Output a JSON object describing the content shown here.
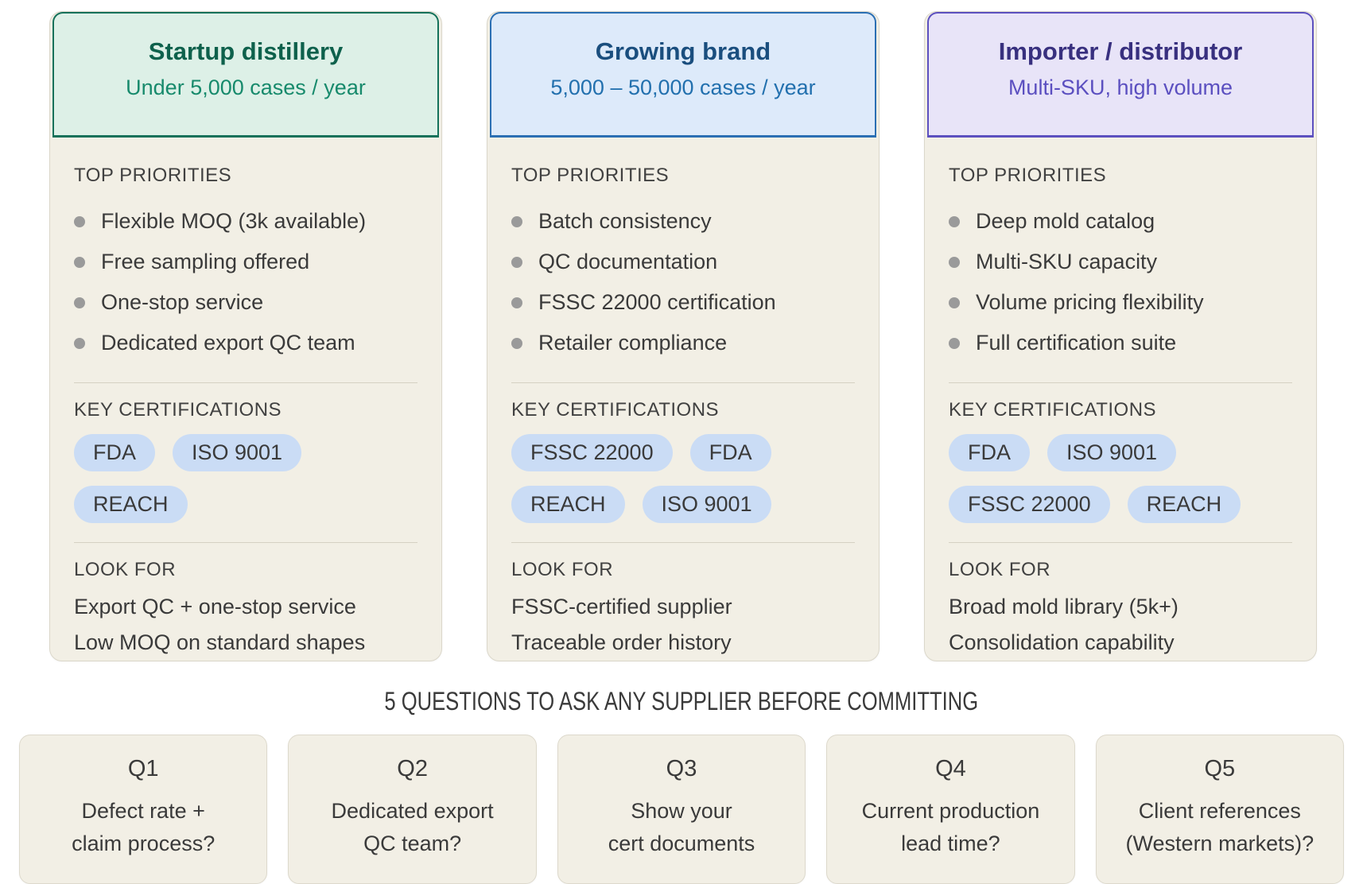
{
  "labels": {
    "priorities": "TOP PRIORITIES",
    "certifications": "KEY CERTIFICATIONS",
    "look_for": "LOOK FOR"
  },
  "colors": {
    "pill_bg": "#cadcf5",
    "card_bg": "#f2efe5",
    "card_border": "#dbd7ca",
    "text": "#3a3a3a",
    "bullet": "#9a9a9a"
  },
  "personas": [
    {
      "title": "Startup distillery",
      "subtitle": "Under 5,000 cases / year",
      "theme": {
        "header_bg": "#ddf0e7",
        "border": "#14715a",
        "title": "#0e614c",
        "subtitle": "#178a6c"
      },
      "priorities": [
        "Flexible MOQ (3k available)",
        "Free sampling offered",
        "One-stop service",
        "Dedicated export QC team"
      ],
      "certifications": [
        "FDA",
        "ISO 9001",
        "REACH"
      ],
      "look_for": [
        "Export QC + one-stop service",
        "Low MOQ on standard shapes"
      ]
    },
    {
      "title": "Growing brand",
      "subtitle": "5,000 – 50,000 cases / year",
      "theme": {
        "header_bg": "#ddeafa",
        "border": "#2b6fb3",
        "title": "#1a4e7e",
        "subtitle": "#2270ae"
      },
      "priorities": [
        "Batch consistency",
        "QC documentation",
        "FSSC 22000 certification",
        "Retailer compliance"
      ],
      "certifications": [
        "FSSC 22000",
        "FDA",
        "REACH",
        "ISO 9001"
      ],
      "look_for": [
        "FSSC-certified supplier",
        "Traceable order history"
      ]
    },
    {
      "title": "Importer / distributor",
      "subtitle": "Multi-SKU, high volume",
      "theme": {
        "header_bg": "#e8e4f8",
        "border": "#5c50bf",
        "title": "#38307f",
        "subtitle": "#5b4fc0"
      },
      "priorities": [
        "Deep mold catalog",
        "Multi-SKU capacity",
        "Volume pricing flexibility",
        "Full certification suite"
      ],
      "certifications": [
        "FDA",
        "ISO 9001",
        "FSSC 22000",
        "REACH"
      ],
      "look_for": [
        "Broad mold library (5k+)",
        "Consolidation capability"
      ]
    }
  ],
  "questions_section": {
    "heading": "5 QUESTIONS TO ASK ANY SUPPLIER BEFORE COMMITTING",
    "questions": [
      {
        "label": "Q1",
        "lines": [
          "Defect rate +",
          "claim process?"
        ]
      },
      {
        "label": "Q2",
        "lines": [
          "Dedicated export",
          "QC team?"
        ]
      },
      {
        "label": "Q3",
        "lines": [
          "Show your",
          "cert documents"
        ]
      },
      {
        "label": "Q4",
        "lines": [
          "Current production",
          "lead time?"
        ]
      },
      {
        "label": "Q5",
        "lines": [
          "Client references",
          "(Western markets)?"
        ]
      }
    ]
  }
}
